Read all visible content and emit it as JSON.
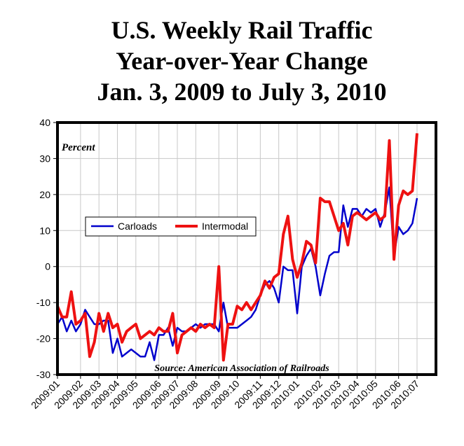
{
  "chart_data": {
    "type": "line",
    "title": [
      "U.S. Weekly Rail Traffic",
      "Year-over-Year Change",
      "Jan. 3, 2009 to July 3, 2010"
    ],
    "y_label": "Percent",
    "source": "Source: American Association of Railroads",
    "categories": [
      "2009:01",
      null,
      null,
      null,
      null,
      "2009:02",
      null,
      null,
      null,
      "2009:03",
      null,
      null,
      null,
      "2009:04",
      null,
      null,
      null,
      "2009:05",
      null,
      null,
      null,
      null,
      "2009:06",
      null,
      null,
      null,
      "2009:07",
      null,
      null,
      null,
      "2009:08",
      null,
      null,
      null,
      null,
      "2009:09",
      null,
      null,
      null,
      "2009:10",
      null,
      null,
      null,
      null,
      "2009:11",
      null,
      null,
      null,
      "2009:12",
      null,
      null,
      null,
      "2010:01",
      null,
      null,
      null,
      null,
      "2010:02",
      null,
      null,
      null,
      "2010:03",
      null,
      null,
      null,
      "2010:04",
      null,
      null,
      null,
      "2010:05",
      null,
      null,
      null,
      null,
      "2010:06",
      null,
      null,
      null,
      "2010:07"
    ],
    "series": [
      {
        "name": "Carloads",
        "color": "#0000cc",
        "values": [
          -16,
          -14,
          -18,
          -15,
          -18,
          -16,
          -12,
          -14,
          -16,
          -16,
          -15,
          -15,
          -24,
          -20,
          -25,
          -24,
          -23,
          -24,
          -25,
          -25,
          -21,
          -26,
          -19,
          -19,
          -17,
          -22,
          -17,
          -18,
          -18,
          -17,
          -16,
          -17,
          -16,
          -16,
          -16,
          -18,
          -10,
          -17,
          -17,
          -17,
          -16,
          -15,
          -14,
          -12,
          -8,
          -5,
          -4,
          -6,
          -10,
          0,
          -1,
          -1,
          -13,
          0,
          3,
          5,
          0,
          -8,
          -2,
          3,
          4,
          4,
          17,
          11,
          16,
          16,
          14,
          16,
          15,
          16,
          11,
          15,
          22,
          3,
          11,
          9,
          10,
          12,
          19
        ]
      },
      {
        "name": "Intermodal",
        "color": "#ee1111",
        "values": [
          -11,
          -14,
          -14,
          -7,
          -16,
          -15,
          -13,
          -25,
          -21,
          -13,
          -18,
          -13,
          -17,
          -16,
          -21,
          -18,
          -17,
          -16,
          -20,
          -19,
          -18,
          -19,
          -17,
          -18,
          -18,
          -13,
          -24,
          -19,
          -18,
          -17,
          -18,
          -16,
          -17,
          -16,
          -17,
          0,
          -26,
          -16,
          -16,
          -11,
          -12,
          -10,
          -12,
          -10,
          -8,
          -4,
          -6,
          -3,
          -2,
          9,
          14,
          2,
          -3,
          1,
          7,
          6,
          1,
          19,
          18,
          18,
          14,
          10,
          12,
          6,
          14,
          15,
          14,
          13,
          14,
          15,
          13,
          14,
          35,
          2,
          17,
          21,
          20,
          21,
          37
        ]
      }
    ],
    "ylim": [
      -30,
      40
    ],
    "yticks": [
      -30,
      -20,
      -10,
      0,
      10,
      20,
      30,
      40
    ],
    "grid": true,
    "legend": "left"
  }
}
